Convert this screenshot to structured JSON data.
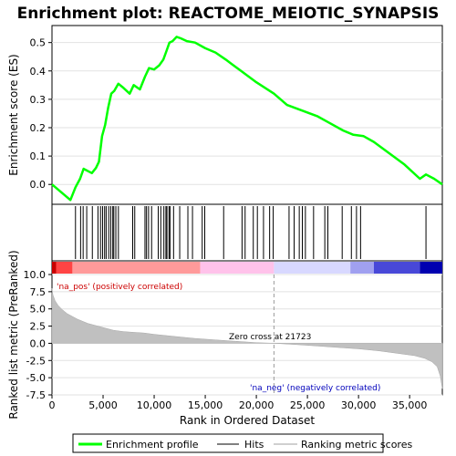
{
  "chart_data": [
    {
      "type": "line",
      "title": "Enrichment plot: REACTOME_MEIOTIC_SYNAPSIS",
      "ylabel": "Enrichment score (ES)",
      "ylim": [
        -0.07,
        0.56
      ],
      "y_ticks": [
        "0.0",
        "0.1",
        "0.2",
        "0.3",
        "0.4",
        "0.5"
      ],
      "grid": true,
      "series": [
        {
          "name": "Enrichment profile",
          "color": "#00ff00",
          "x": [
            0,
            1800,
            2300,
            2750,
            3100,
            3900,
            4300,
            4600,
            4900,
            5200,
            5500,
            5800,
            6100,
            6500,
            7000,
            7600,
            8000,
            8600,
            9100,
            9500,
            10000,
            10500,
            10900,
            11200,
            11500,
            11800,
            12200,
            12600,
            13200,
            14000,
            15000,
            16000,
            17000,
            18500,
            20000,
            21723,
            23000,
            24500,
            26000,
            27000,
            28500,
            29500,
            30500,
            31500,
            33000,
            34500,
            36000,
            36600,
            37400,
            38200
          ],
          "y": [
            0.0,
            -0.055,
            -0.01,
            0.02,
            0.055,
            0.04,
            0.058,
            0.08,
            0.17,
            0.21,
            0.27,
            0.32,
            0.33,
            0.355,
            0.34,
            0.32,
            0.35,
            0.335,
            0.38,
            0.41,
            0.405,
            0.42,
            0.44,
            0.47,
            0.5,
            0.505,
            0.52,
            0.515,
            0.505,
            0.5,
            0.48,
            0.465,
            0.44,
            0.4,
            0.36,
            0.32,
            0.28,
            0.26,
            0.24,
            0.22,
            0.19,
            0.175,
            0.17,
            0.15,
            0.11,
            0.07,
            0.02,
            0.035,
            0.02,
            0.0
          ]
        }
      ]
    },
    {
      "type": "scatter",
      "series": [
        {
          "name": "Hits",
          "x": [
            2300,
            2800,
            3050,
            3400,
            3950,
            4500,
            4750,
            4950,
            5150,
            5300,
            5550,
            5750,
            5950,
            6050,
            6250,
            6500,
            7900,
            8100,
            9100,
            9250,
            9450,
            9750,
            10400,
            10650,
            10950,
            11150,
            11250,
            11450,
            11550,
            11900,
            12500,
            13300,
            13750,
            14700,
            14950,
            16800,
            18600,
            18900,
            19700,
            20100,
            20700,
            21300,
            21650,
            23200,
            23700,
            24200,
            24500,
            24800,
            25600,
            26700,
            27000,
            28400,
            29300,
            29800,
            30200,
            36600
          ]
        }
      ]
    },
    {
      "type": "heatmap",
      "colors": [
        "#c80000",
        "#ff4444",
        "#ff9a9a",
        "#ffc2ea",
        "#d8d8ff",
        "#a0a0f0",
        "#4848d8",
        "#0000b0"
      ],
      "bounds": [
        0,
        400,
        2000,
        14500,
        21723,
        29200,
        31500,
        36000,
        38200
      ]
    },
    {
      "type": "area",
      "ylabel": "Ranked list metric (PreRanked)",
      "xlabel": "Rank in Ordered Dataset",
      "ylim": [
        -7.5,
        10.0
      ],
      "xlim": [
        0,
        38200
      ],
      "y_ticks": [
        "10.0",
        "7.5",
        "5.0",
        "2.5",
        "0.0",
        "-2.5",
        "-5.0",
        "-7.5"
      ],
      "x_ticks": [
        "0",
        "5,000",
        "10,000",
        "15,000",
        "20,000",
        "25,000",
        "30,000",
        "35,000"
      ],
      "series": [
        {
          "name": "Ranking metric scores",
          "color": "#c0c0c0",
          "x": [
            0,
            100,
            300,
            600,
            1000,
            1500,
            2000,
            2500,
            3000,
            3500,
            4000,
            5000,
            6000,
            7000,
            8000,
            9000,
            10000,
            12000,
            14000,
            16000,
            18000,
            20000,
            21723,
            24000,
            26000,
            28000,
            30000,
            32000,
            34000,
            35500,
            36500,
            37200,
            37700,
            38000,
            38200
          ],
          "y": [
            8.0,
            7.0,
            6.2,
            5.5,
            4.9,
            4.3,
            3.9,
            3.5,
            3.2,
            2.9,
            2.7,
            2.3,
            1.9,
            1.7,
            1.6,
            1.5,
            1.3,
            1.0,
            0.7,
            0.5,
            0.3,
            0.1,
            0.0,
            -0.2,
            -0.4,
            -0.6,
            -0.8,
            -1.1,
            -1.5,
            -1.8,
            -2.2,
            -2.7,
            -3.4,
            -4.8,
            -6.6
          ]
        }
      ],
      "zero_cross": 21723,
      "annotations": [
        "'na_pos' (positively correlated)",
        "Zero cross at 21723",
        "'na_neg' (negatively correlated)"
      ]
    }
  ],
  "legend": {
    "items": [
      {
        "label": "Enrichment profile",
        "color": "#00ff00",
        "kind": "thick-line"
      },
      {
        "label": "Hits",
        "color": "#000000",
        "kind": "thin-line"
      },
      {
        "label": "Ranking metric scores",
        "color": "#c0c0c0",
        "kind": "thin-line"
      }
    ]
  }
}
